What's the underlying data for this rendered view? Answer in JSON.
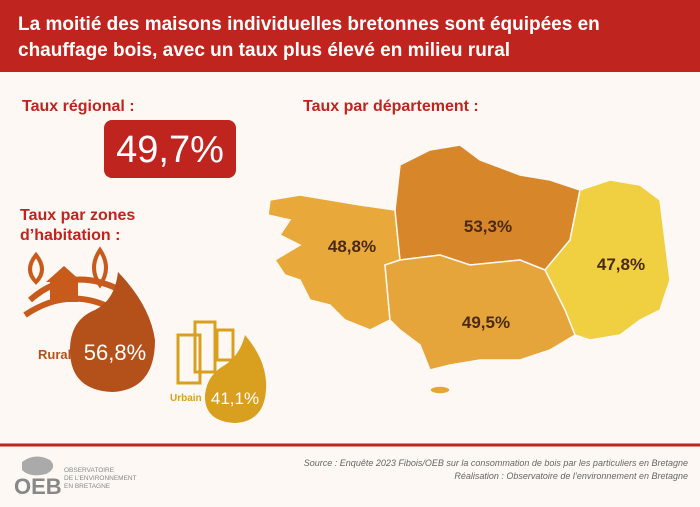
{
  "header": {
    "title": [
      "La moitié des maisons individuelles bretonnes sont équipées en",
      "chauffage bois, avec un taux plus élevé en milieu rural"
    ]
  },
  "regional": {
    "label": "Taux régional :",
    "value": "49,7%"
  },
  "zones": {
    "label": [
      "Taux par zones",
      "d’habitation :"
    ],
    "items": [
      {
        "label": "Rural",
        "value": "56,8%"
      },
      {
        "label": "Urbain",
        "value": "41,1%"
      }
    ]
  },
  "departments": {
    "label": "Taux par département :",
    "values": [
      "48,8%",
      "53,3%",
      "47,8%",
      "49,5%"
    ]
  },
  "footer": {
    "source": "Source : Enquête 2023 Fibois/OEB sur la consommation de bois par les particuliers en Bretagne",
    "credit": "Réalisation : Observatoire de l’environnement en Bretagne",
    "logo": "OEB",
    "logo_lines": [
      "OBSERVATOIRE",
      "DE L’ENVIRONNEMENT",
      "EN BRETAGNE"
    ]
  }
}
